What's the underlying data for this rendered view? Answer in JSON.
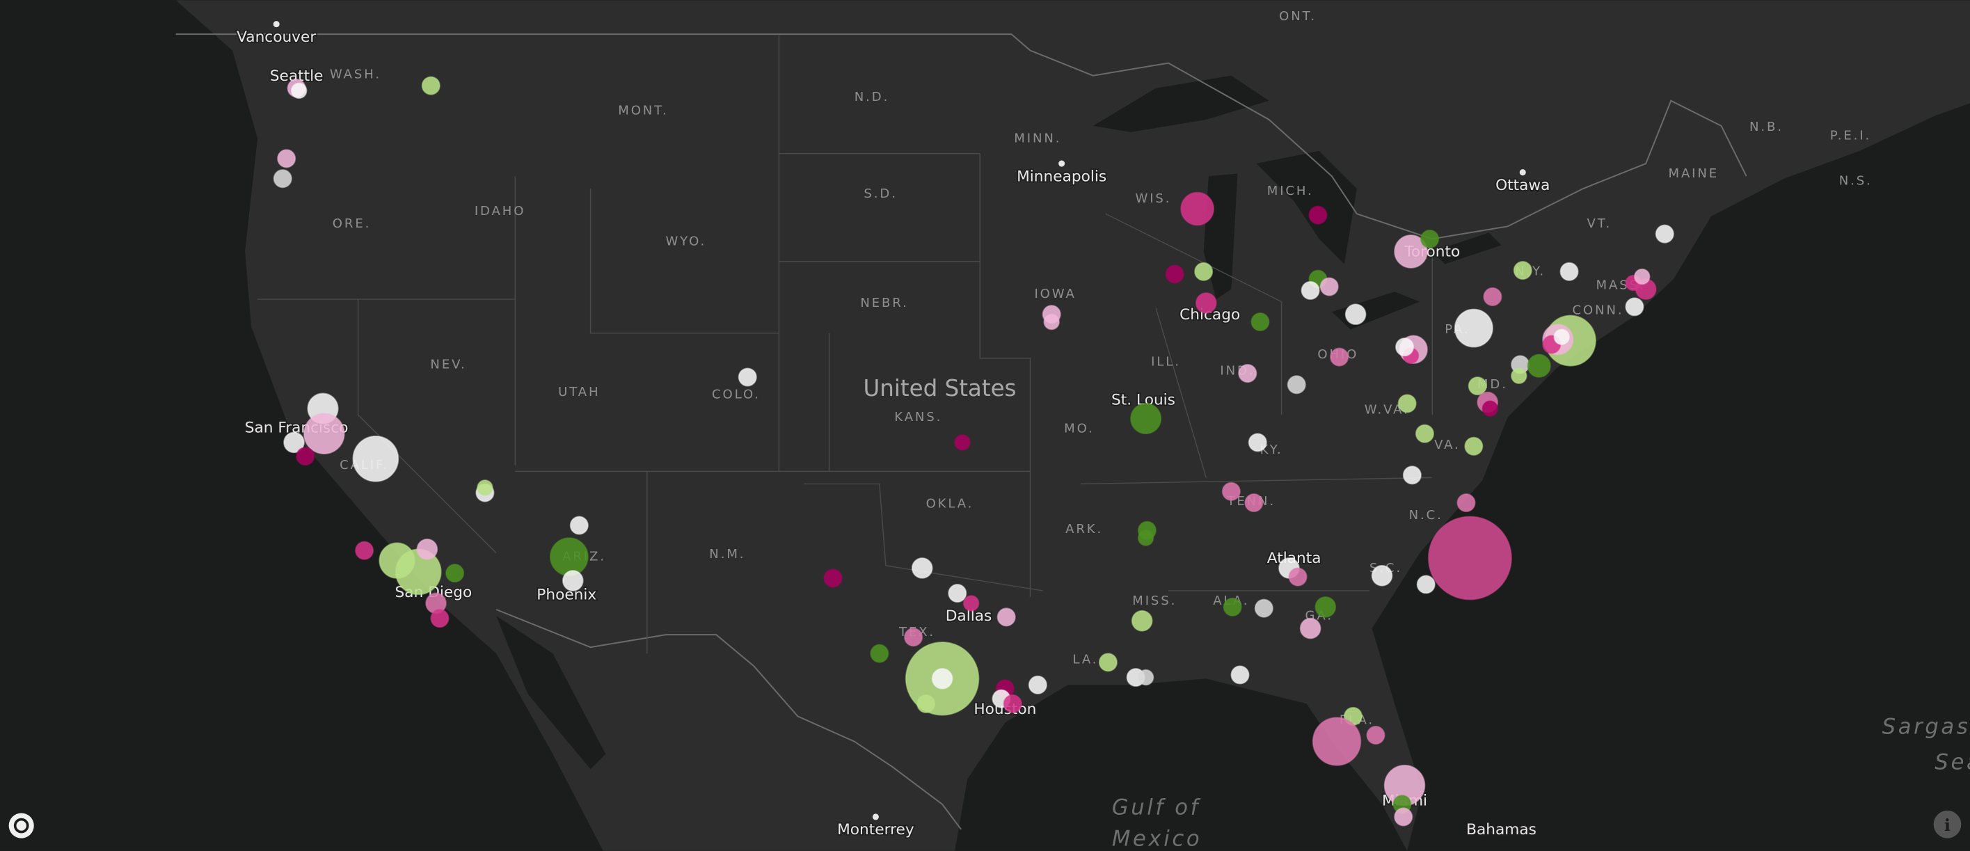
{
  "map": {
    "country": "United States",
    "cities": [
      "Vancouver",
      "Seattle",
      "San Francisco",
      "San Diego",
      "Phoenix",
      "Minneapolis",
      "Chicago",
      "St. Louis",
      "Dallas",
      "Houston",
      "Atlanta",
      "Toronto",
      "Ottawa",
      "Miami",
      "Monterrey",
      "Bahamas"
    ],
    "states": [
      "WASH.",
      "MONT.",
      "N.D.",
      "MINN.",
      "WIS.",
      "MICH.",
      "ORE.",
      "IDAHO",
      "S.D.",
      "WYO.",
      "NEBR.",
      "IOWA",
      "NEV.",
      "UTAH",
      "COLO.",
      "KANS.",
      "MO.",
      "ILL.",
      "IND.",
      "OHIO",
      "PA.",
      "W.VA.",
      "VA.",
      "KY.",
      "TENN.",
      "N.C.",
      "S.C.",
      "OKLA.",
      "ARK.",
      "N.M.",
      "ARIZ.",
      "CALIF.",
      "TEX.",
      "LA.",
      "MISS.",
      "ALA.",
      "GA.",
      "FLA.",
      "N.Y.",
      "VT.",
      "MAINE",
      "MASS.",
      "CONN.",
      "MD.",
      "ONT.",
      "N.B.",
      "P.E.I.",
      "N.S."
    ],
    "water": [
      "Gulf of",
      "Mexico",
      "Sargasso",
      "Sea"
    ]
  }
}
